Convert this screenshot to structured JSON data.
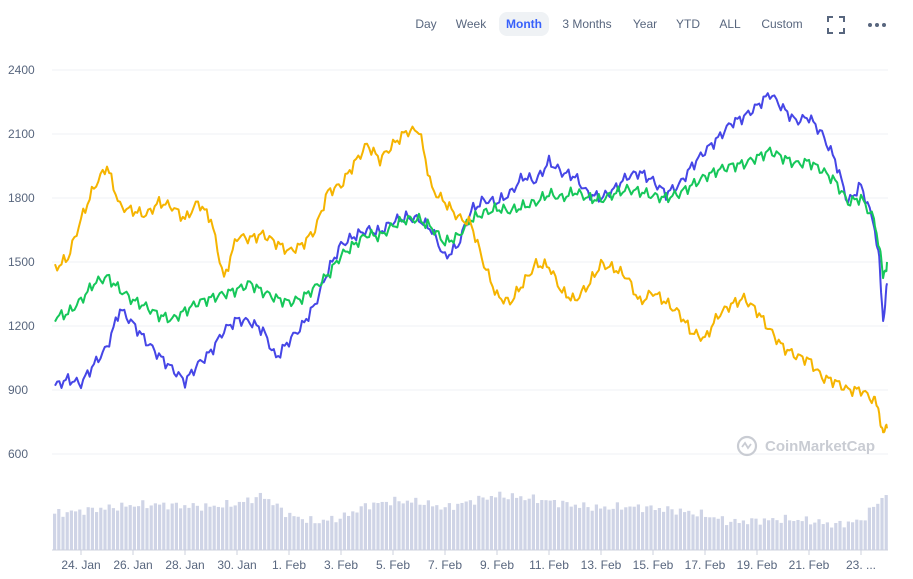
{
  "toolbar": {
    "ranges": [
      {
        "label": "Day",
        "active": false
      },
      {
        "label": "Week",
        "active": false
      },
      {
        "label": "Month",
        "active": true
      },
      {
        "label": "3 Months",
        "active": false
      },
      {
        "label": "Year",
        "active": false
      },
      {
        "label": "YTD",
        "active": false
      },
      {
        "label": "ALL",
        "active": false
      },
      {
        "label": "Custom",
        "active": false
      }
    ],
    "fullscreen_icon": "fullscreen-icon",
    "more_icon": "more-horizontal-icon"
  },
  "watermark": "CoinMarketCap",
  "colors": {
    "series_blue": "#4646e6",
    "series_green": "#16c75a",
    "series_orange": "#f5b400",
    "volume": "#cfd4e6",
    "grid": "#eff2f5",
    "axis_text": "#58667e",
    "active_tab": "#3861fb"
  },
  "chart_data": {
    "type": "line",
    "title": "",
    "xlabel": "",
    "ylabel": "",
    "ylim": [
      450,
      2450
    ],
    "y_ticks": [
      600,
      900,
      1200,
      1500,
      1800,
      2100,
      2400
    ],
    "x_tick_labels": [
      "24. Jan",
      "26. Jan",
      "28. Jan",
      "30. Jan",
      "1. Feb",
      "3. Feb",
      "5. Feb",
      "7. Feb",
      "9. Feb",
      "11. Feb",
      "13. Feb",
      "15. Feb",
      "17. Feb",
      "19. Feb",
      "21. Feb",
      "23. ..."
    ],
    "x_day_range": [
      "23. Jan",
      "24. Feb"
    ],
    "grid": true,
    "legend": "none",
    "series": [
      {
        "color": "#4646e6",
        "x_day_offset": [
          0,
          0.5,
          1,
          1.5,
          2,
          2.5,
          3,
          3.5,
          4,
          4.5,
          5,
          5.5,
          6,
          6.5,
          7,
          7.5,
          8,
          8.5,
          9,
          9.5,
          10,
          10.5,
          11,
          11.5,
          12,
          12.5,
          13,
          13.5,
          14,
          14.5,
          15,
          15.5,
          16,
          16.5,
          17,
          17.5,
          18,
          18.5,
          19,
          19.5,
          20,
          20.5,
          21,
          21.5,
          22,
          22.5,
          23,
          23.5,
          24,
          24.5,
          25,
          25.5,
          26,
          26.5,
          27,
          27.5,
          28,
          28.5,
          29,
          29.5,
          30,
          30.5,
          31,
          31.5,
          31.7,
          31.85,
          32
        ],
        "values": [
          920,
          950,
          930,
          1020,
          1100,
          1280,
          1210,
          1130,
          1060,
          1000,
          940,
          1020,
          1080,
          1180,
          1230,
          1220,
          1180,
          1050,
          1130,
          1200,
          1300,
          1460,
          1580,
          1620,
          1650,
          1640,
          1690,
          1710,
          1700,
          1650,
          1520,
          1580,
          1740,
          1790,
          1780,
          1820,
          1900,
          1880,
          1970,
          1920,
          1900,
          1820,
          1800,
          1840,
          1900,
          1920,
          1880,
          1820,
          1860,
          1950,
          2020,
          2080,
          2150,
          2180,
          2230,
          2290,
          2220,
          2160,
          2180,
          2100,
          1980,
          1780,
          1860,
          1680,
          1500,
          1230,
          1400
        ]
      },
      {
        "color": "#16c75a",
        "x_day_offset": [
          0,
          0.5,
          1,
          1.5,
          2,
          2.5,
          3,
          3.5,
          4,
          4.5,
          5,
          5.5,
          6,
          6.5,
          7,
          7.5,
          8,
          8.5,
          9,
          9.5,
          10,
          10.5,
          11,
          11.5,
          12,
          12.5,
          13,
          13.5,
          14,
          14.5,
          15,
          15.5,
          16,
          16.5,
          17,
          17.5,
          18,
          18.5,
          19,
          19.5,
          20,
          20.5,
          21,
          21.5,
          22,
          22.5,
          23,
          23.5,
          24,
          24.5,
          25,
          25.5,
          26,
          26.5,
          27,
          27.5,
          28,
          28.5,
          29,
          29.5,
          30,
          30.5,
          31,
          31.5,
          31.7,
          31.85,
          32
        ],
        "values": [
          1240,
          1260,
          1320,
          1400,
          1430,
          1370,
          1320,
          1290,
          1250,
          1230,
          1270,
          1310,
          1330,
          1350,
          1370,
          1400,
          1360,
          1330,
          1310,
          1330,
          1380,
          1440,
          1530,
          1580,
          1630,
          1620,
          1670,
          1700,
          1700,
          1660,
          1590,
          1620,
          1700,
          1730,
          1750,
          1740,
          1760,
          1780,
          1820,
          1800,
          1830,
          1800,
          1790,
          1820,
          1840,
          1830,
          1810,
          1800,
          1820,
          1860,
          1900,
          1930,
          1950,
          1960,
          1990,
          2020,
          1990,
          1960,
          1970,
          1930,
          1880,
          1780,
          1800,
          1700,
          1580,
          1420,
          1500
        ]
      },
      {
        "color": "#f5b400",
        "x_day_offset": [
          0,
          0.5,
          1,
          1.5,
          2,
          2.5,
          3,
          3.5,
          4,
          4.5,
          5,
          5.5,
          6,
          6.5,
          7,
          7.5,
          8,
          8.5,
          9,
          9.5,
          10,
          10.5,
          11,
          11.5,
          12,
          12.5,
          13,
          13.5,
          14,
          14.5,
          15,
          15.5,
          16,
          16.5,
          17,
          17.5,
          18,
          18.5,
          19,
          19.5,
          20,
          20.5,
          21,
          21.5,
          22,
          22.5,
          23,
          23.5,
          24,
          24.5,
          25,
          25.5,
          26,
          26.5,
          27,
          27.5,
          28,
          28.5,
          29,
          29.5,
          30,
          30.5,
          31,
          31.5,
          31.7,
          31.85,
          32
        ],
        "values": [
          1470,
          1520,
          1700,
          1850,
          1950,
          1760,
          1740,
          1720,
          1780,
          1760,
          1700,
          1780,
          1700,
          1420,
          1620,
          1610,
          1630,
          1590,
          1550,
          1580,
          1650,
          1830,
          1860,
          1960,
          2050,
          1980,
          2050,
          2110,
          2120,
          1840,
          1780,
          1710,
          1680,
          1490,
          1340,
          1310,
          1400,
          1490,
          1480,
          1360,
          1320,
          1390,
          1490,
          1470,
          1430,
          1310,
          1360,
          1310,
          1260,
          1170,
          1140,
          1250,
          1300,
          1330,
          1270,
          1180,
          1100,
          1060,
          1040,
          960,
          940,
          900,
          900,
          850,
          800,
          690,
          720
        ]
      }
    ],
    "volume": {
      "x_day_offset": [
        0,
        1,
        2,
        3,
        4,
        5,
        6,
        7,
        8,
        9,
        10,
        11,
        12,
        13,
        14,
        15,
        16,
        17,
        18,
        19,
        20,
        21,
        22,
        23,
        24,
        25,
        26,
        27,
        28,
        29,
        30,
        31,
        32
      ],
      "values": [
        0.52,
        0.56,
        0.6,
        0.64,
        0.65,
        0.63,
        0.62,
        0.66,
        0.78,
        0.5,
        0.4,
        0.46,
        0.64,
        0.7,
        0.69,
        0.6,
        0.7,
        0.78,
        0.75,
        0.7,
        0.64,
        0.6,
        0.62,
        0.6,
        0.56,
        0.5,
        0.4,
        0.42,
        0.44,
        0.42,
        0.36,
        0.42,
        0.82
      ]
    }
  }
}
